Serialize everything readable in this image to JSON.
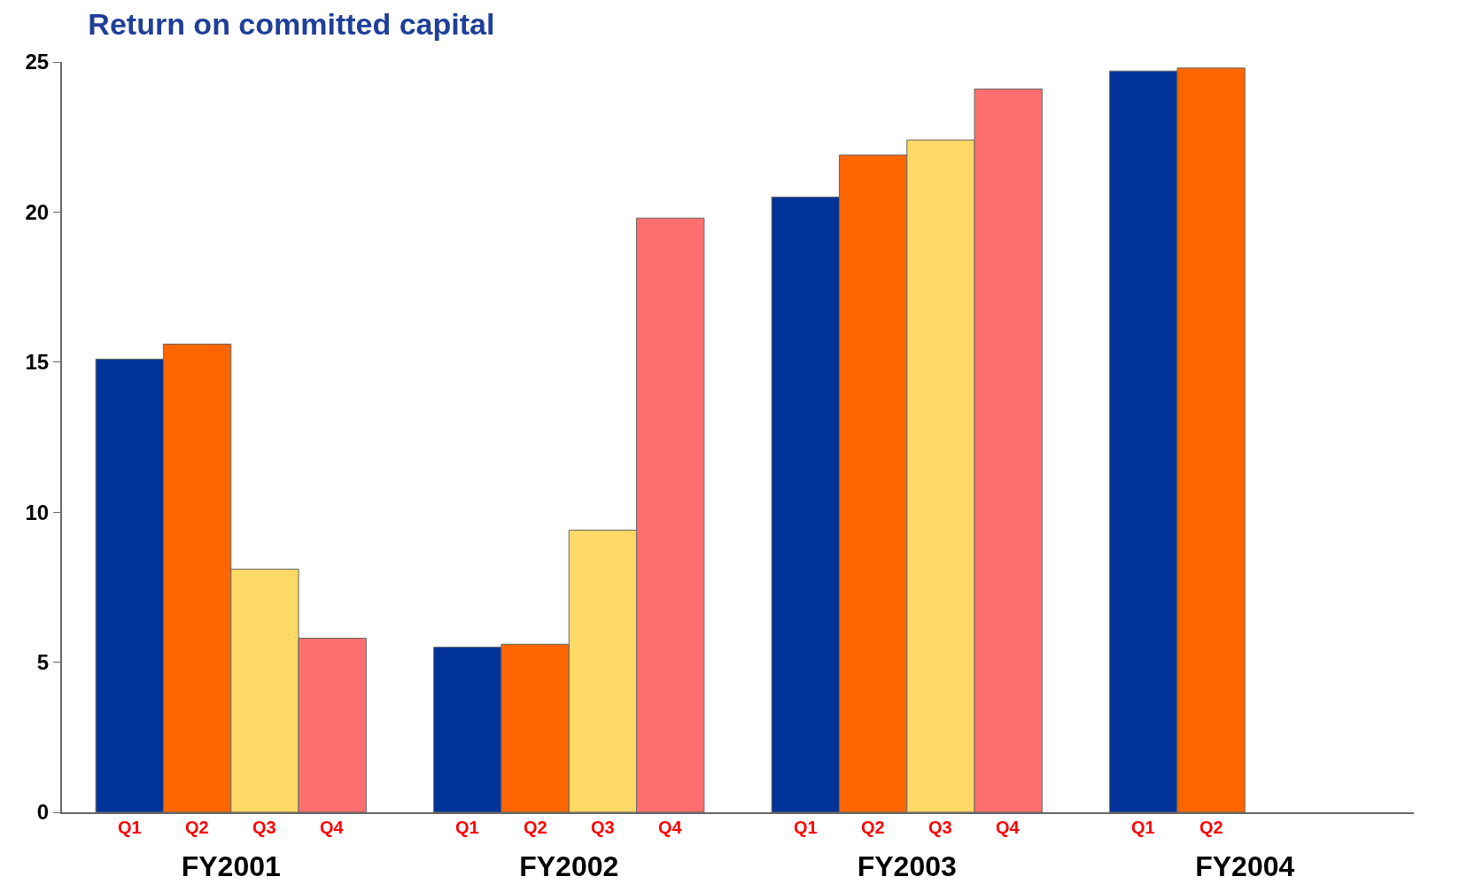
{
  "chart_data": {
    "type": "bar",
    "title": "Return on committed capital",
    "categories": [
      "FY2001",
      "FY2002",
      "FY2003",
      "FY2004"
    ],
    "series": [
      {
        "name": "Q1",
        "color": "#003399",
        "values": [
          15.1,
          5.5,
          20.5,
          24.7
        ]
      },
      {
        "name": "Q2",
        "color": "#ff6600",
        "values": [
          15.6,
          5.6,
          21.9,
          24.8
        ]
      },
      {
        "name": "Q3",
        "color": "#ffd966",
        "values": [
          8.1,
          9.4,
          22.4,
          null
        ]
      },
      {
        "name": "Q4",
        "color": "#ff6f6f",
        "values": [
          5.8,
          19.8,
          24.1,
          null
        ]
      }
    ],
    "ylim": [
      0,
      25
    ],
    "yticks": [
      0,
      5,
      10,
      15,
      20,
      25
    ],
    "grid": false,
    "legend": false
  }
}
